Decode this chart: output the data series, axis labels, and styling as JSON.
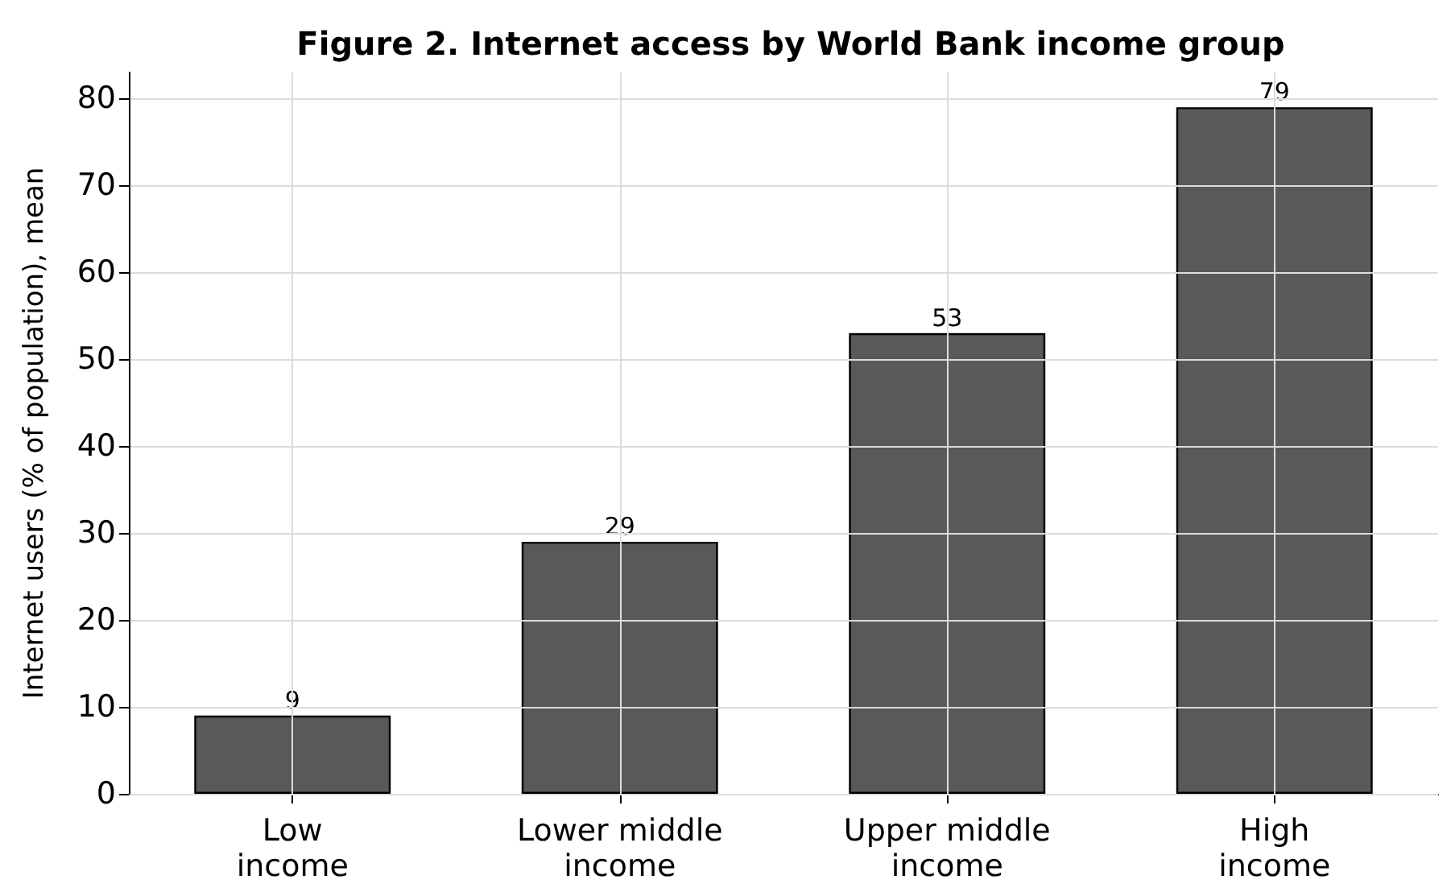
{
  "chart_data": {
    "type": "bar",
    "title": "Figure 2. Internet access by World Bank income group",
    "ylabel": "Internet users (% of population), mean",
    "categories": [
      "Low income",
      "Lower middle income",
      "Upper middle income",
      "High income"
    ],
    "values": [
      9,
      29,
      53,
      79
    ],
    "color": "#595959",
    "ylim": [
      0,
      83
    ],
    "yticks": [
      0,
      10,
      20,
      30,
      40,
      50,
      60,
      70,
      80
    ],
    "grid": true,
    "data_labels": true
  }
}
